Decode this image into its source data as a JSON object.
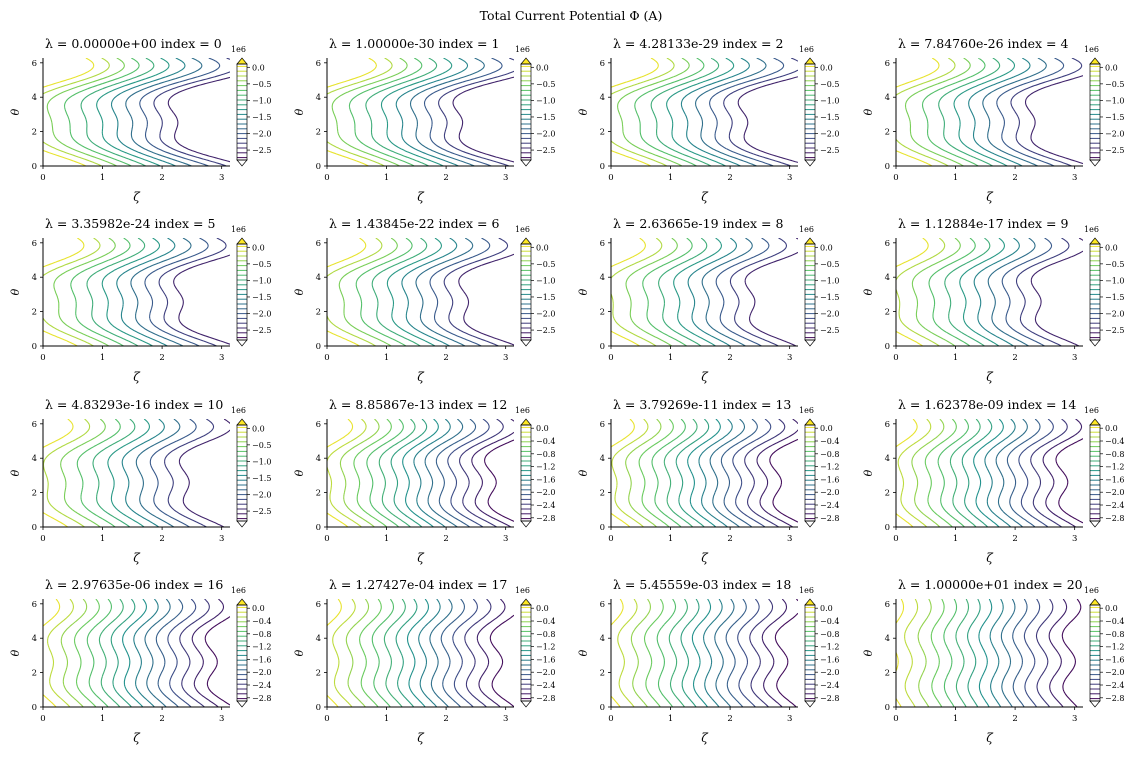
{
  "suptitle": "Total Current Potential Φ (A)",
  "chart_data": {
    "type": "contour",
    "grid": [
      4,
      4
    ],
    "panels": [
      {
        "lambda": "0.00000e+00",
        "index": 0,
        "cbar": "A"
      },
      {
        "lambda": "1.00000e-30",
        "index": 1,
        "cbar": "A"
      },
      {
        "lambda": "4.28133e-29",
        "index": 2,
        "cbar": "A"
      },
      {
        "lambda": "7.84760e-26",
        "index": 4,
        "cbar": "A"
      },
      {
        "lambda": "3.35982e-24",
        "index": 5,
        "cbar": "A"
      },
      {
        "lambda": "1.43845e-22",
        "index": 6,
        "cbar": "A"
      },
      {
        "lambda": "2.63665e-19",
        "index": 8,
        "cbar": "A"
      },
      {
        "lambda": "1.12884e-17",
        "index": 9,
        "cbar": "A"
      },
      {
        "lambda": "4.83293e-16",
        "index": 10,
        "cbar": "A"
      },
      {
        "lambda": "8.85867e-13",
        "index": 12,
        "cbar": "B"
      },
      {
        "lambda": "3.79269e-11",
        "index": 13,
        "cbar": "B"
      },
      {
        "lambda": "1.62378e-09",
        "index": 14,
        "cbar": "B"
      },
      {
        "lambda": "2.97635e-06",
        "index": 16,
        "cbar": "B"
      },
      {
        "lambda": "1.27427e-04",
        "index": 17,
        "cbar": "B"
      },
      {
        "lambda": "5.45559e-03",
        "index": 18,
        "cbar": "B"
      },
      {
        "lambda": "1.00000e+01",
        "index": 20,
        "cbar": "B"
      }
    ],
    "title_prefix": "λ =",
    "title_mid": "index =",
    "xlabel": "ζ",
    "ylabel": "θ",
    "xlim": [
      0,
      3.14
    ],
    "ylim": [
      0,
      6.28
    ],
    "xticks": [
      "0",
      "1",
      "2",
      "3"
    ],
    "yticks": [
      "0",
      "2",
      "4",
      "6"
    ],
    "colorbar_multiplier": "1e6",
    "colorbars": {
      "A": {
        "ticks": [
          "0.0",
          "−0.5",
          "−1.0",
          "−1.5",
          "−2.0",
          "−2.5"
        ],
        "values": [
          0,
          -0.5,
          -1.0,
          -1.5,
          -2.0,
          -2.5
        ],
        "range": [
          -2.8,
          0.1
        ]
      },
      "B": {
        "ticks": [
          "0.0",
          "−0.4",
          "−0.8",
          "−1.2",
          "−1.6",
          "−2.0",
          "−2.4",
          "−2.8"
        ],
        "values": [
          0,
          -0.4,
          -0.8,
          -1.2,
          -1.6,
          -2.0,
          -2.4,
          -2.8
        ],
        "range": [
          -2.9,
          0.1
        ]
      }
    },
    "colormap": "viridis",
    "colormap_stops": [
      "#440154",
      "#3b528b",
      "#21918c",
      "#5ec962",
      "#fde725"
    ]
  }
}
